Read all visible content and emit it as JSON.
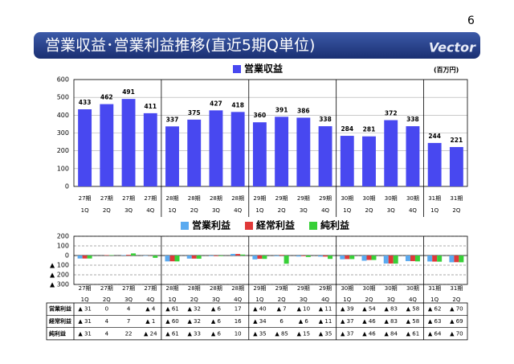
{
  "slide": {
    "page_number": "6",
    "title": "営業収益･営業利益推移(直近5期Q単位)",
    "logo": "Vector"
  },
  "chart_data": [
    {
      "type": "bar",
      "unit": "(百万円)",
      "categories": [
        [
          "27期",
          "1Q"
        ],
        [
          "27期",
          "2Q"
        ],
        [
          "27期",
          "3Q"
        ],
        [
          "27期",
          "4Q"
        ],
        [
          "28期",
          "1Q"
        ],
        [
          "28期",
          "2Q"
        ],
        [
          "28期",
          "3Q"
        ],
        [
          "28期",
          "4Q"
        ],
        [
          "29期",
          "1Q"
        ],
        [
          "29期",
          "2Q"
        ],
        [
          "29期",
          "3Q"
        ],
        [
          "29期",
          "4Q"
        ],
        [
          "30期",
          "1Q"
        ],
        [
          "30期",
          "2Q"
        ],
        [
          "30期",
          "3Q"
        ],
        [
          "30期",
          "4Q"
        ],
        [
          "31期",
          "1Q"
        ],
        [
          "31期",
          "2Q"
        ]
      ],
      "series": [
        {
          "name": "営業収益",
          "color": "#4848f0",
          "values": [
            433,
            462,
            491,
            411,
            337,
            375,
            427,
            418,
            360,
            391,
            386,
            338,
            284,
            281,
            372,
            338,
            244,
            221
          ]
        }
      ],
      "ylim": [
        0,
        600
      ],
      "yticks": [
        0,
        100,
        200,
        300,
        400,
        500,
        600
      ],
      "grid": true,
      "grid_style": "solid"
    },
    {
      "type": "bar",
      "series": [
        {
          "name": "営業利益",
          "color": "#5aaaf0",
          "values": [
            -31,
            0,
            4,
            -4,
            -61,
            -32,
            -6,
            17,
            -40,
            -7,
            -10,
            -11,
            -39,
            -54,
            -83,
            -58,
            -62,
            -70
          ],
          "value_labels": [
            "▲ 31",
            "0",
            "4",
            "▲ 4",
            "▲ 61",
            "▲ 32",
            "▲ 6",
            "17",
            "▲ 40",
            "▲ 7",
            "▲ 10",
            "▲ 11",
            "▲ 39",
            "▲ 54",
            "▲ 83",
            "▲ 58",
            "▲ 62",
            "▲ 70"
          ]
        },
        {
          "name": "経常利益",
          "color": "#e03838",
          "values": [
            -31,
            4,
            7,
            -1,
            -60,
            -32,
            -6,
            16,
            -34,
            6,
            -6,
            -11,
            -37,
            -46,
            -83,
            -58,
            -63,
            -69
          ],
          "value_labels": [
            "▲ 31",
            "4",
            "7",
            "▲ 1",
            "▲ 60",
            "▲ 32",
            "▲ 6",
            "16",
            "▲ 34",
            "6",
            "▲ 6",
            "▲ 11",
            "▲ 37",
            "▲ 46",
            "▲ 83",
            "▲ 58",
            "▲ 63",
            "▲ 69"
          ]
        },
        {
          "name": "純利益",
          "color": "#38d038",
          "values": [
            -31,
            4,
            22,
            -24,
            -61,
            -33,
            -6,
            10,
            -35,
            -85,
            -15,
            -35,
            -37,
            -46,
            -84,
            -61,
            -64,
            -70
          ],
          "value_labels": [
            "▲ 31",
            "4",
            "22",
            "▲ 24",
            "▲ 61",
            "▲ 33",
            "▲ 6",
            "10",
            "▲ 35",
            "▲ 85",
            "▲ 15",
            "▲ 35",
            "▲ 37",
            "▲ 46",
            "▲ 84",
            "▲ 61",
            "▲ 64",
            "▲ 70"
          ]
        }
      ],
      "ylim": [
        -300,
        200
      ],
      "yticks": [
        200,
        100,
        0,
        {
          "value": -100,
          "label": "▲ 100"
        },
        {
          "value": -200,
          "label": "▲ 200"
        },
        {
          "value": -300,
          "label": "▲ 300"
        }
      ],
      "grid": true,
      "grid_style": "dashed"
    }
  ]
}
